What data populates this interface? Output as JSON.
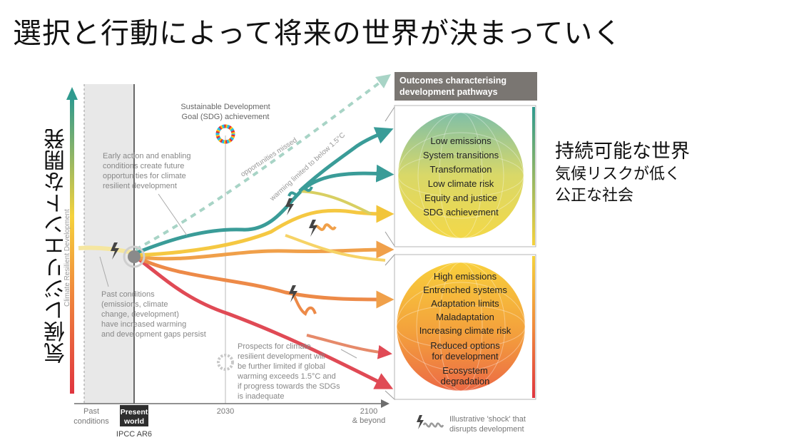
{
  "slide": {
    "title": "選択と行動によって将来の世界が決まっていく",
    "vertical_label": "気候レジリエントな開発",
    "right_note": {
      "main": "持続可能な世界",
      "sub1": "気候リスクが低く",
      "sub2": "公正な社会"
    }
  },
  "figure": {
    "y_axis_label": "Climate Resilient Development",
    "header_box": {
      "line1": "Outcomes characterising",
      "line2": "development pathways"
    },
    "sdg_label": {
      "line1": "Sustainable Development",
      "line2": "Goal (SDG) achievement"
    },
    "opportunities_missed": "opportunities missed",
    "warming_limited": "warming limited to below 1.5°C",
    "early_action": {
      "line1": "Early action and enabling",
      "line2": "conditions create future",
      "line3": "opportunities for climate",
      "line4": "resilient development"
    },
    "past_conditions_note": {
      "line1": "Past conditions",
      "line2": "(emissions, climate",
      "line3": "change, development)",
      "line4": "have increased warming",
      "line5": "and development gaps persist"
    },
    "prospects_note": {
      "line1": "Prospects for climate",
      "line2": "resilient development will",
      "line3": "be further limited if global",
      "line4": "warming exceeds 1.5°C and",
      "line5": "if progress towards the SDGs",
      "line6": "is inadequate"
    },
    "good_outcomes": [
      "Low emissions",
      "System transitions",
      "Transformation",
      "Low climate risk",
      "Equity and justice",
      "SDG achievement"
    ],
    "bad_outcomes": [
      "High emissions",
      "Entrenched systems",
      "Adaptation limits",
      "Maladaptation",
      "Increasing climate risk",
      "Reduced options",
      "for development",
      "Ecosystem",
      "degradation"
    ],
    "x_axis": {
      "past_line1": "Past",
      "past_line2": "conditions",
      "present_line1": "Present",
      "present_line2": "world",
      "ipcc": "IPCC AR6",
      "mid": "2030",
      "end_line1": "2100",
      "end_line2": "& beyond"
    },
    "shock_legend": {
      "line1": "Illustrative 'shock' that",
      "line2": "disrupts development"
    },
    "colors": {
      "teal": "#3a9c98",
      "yellow": "#f2c53a",
      "orange": "#f0a04a",
      "red": "#e04a55",
      "header_bg": "#7a7672"
    }
  }
}
